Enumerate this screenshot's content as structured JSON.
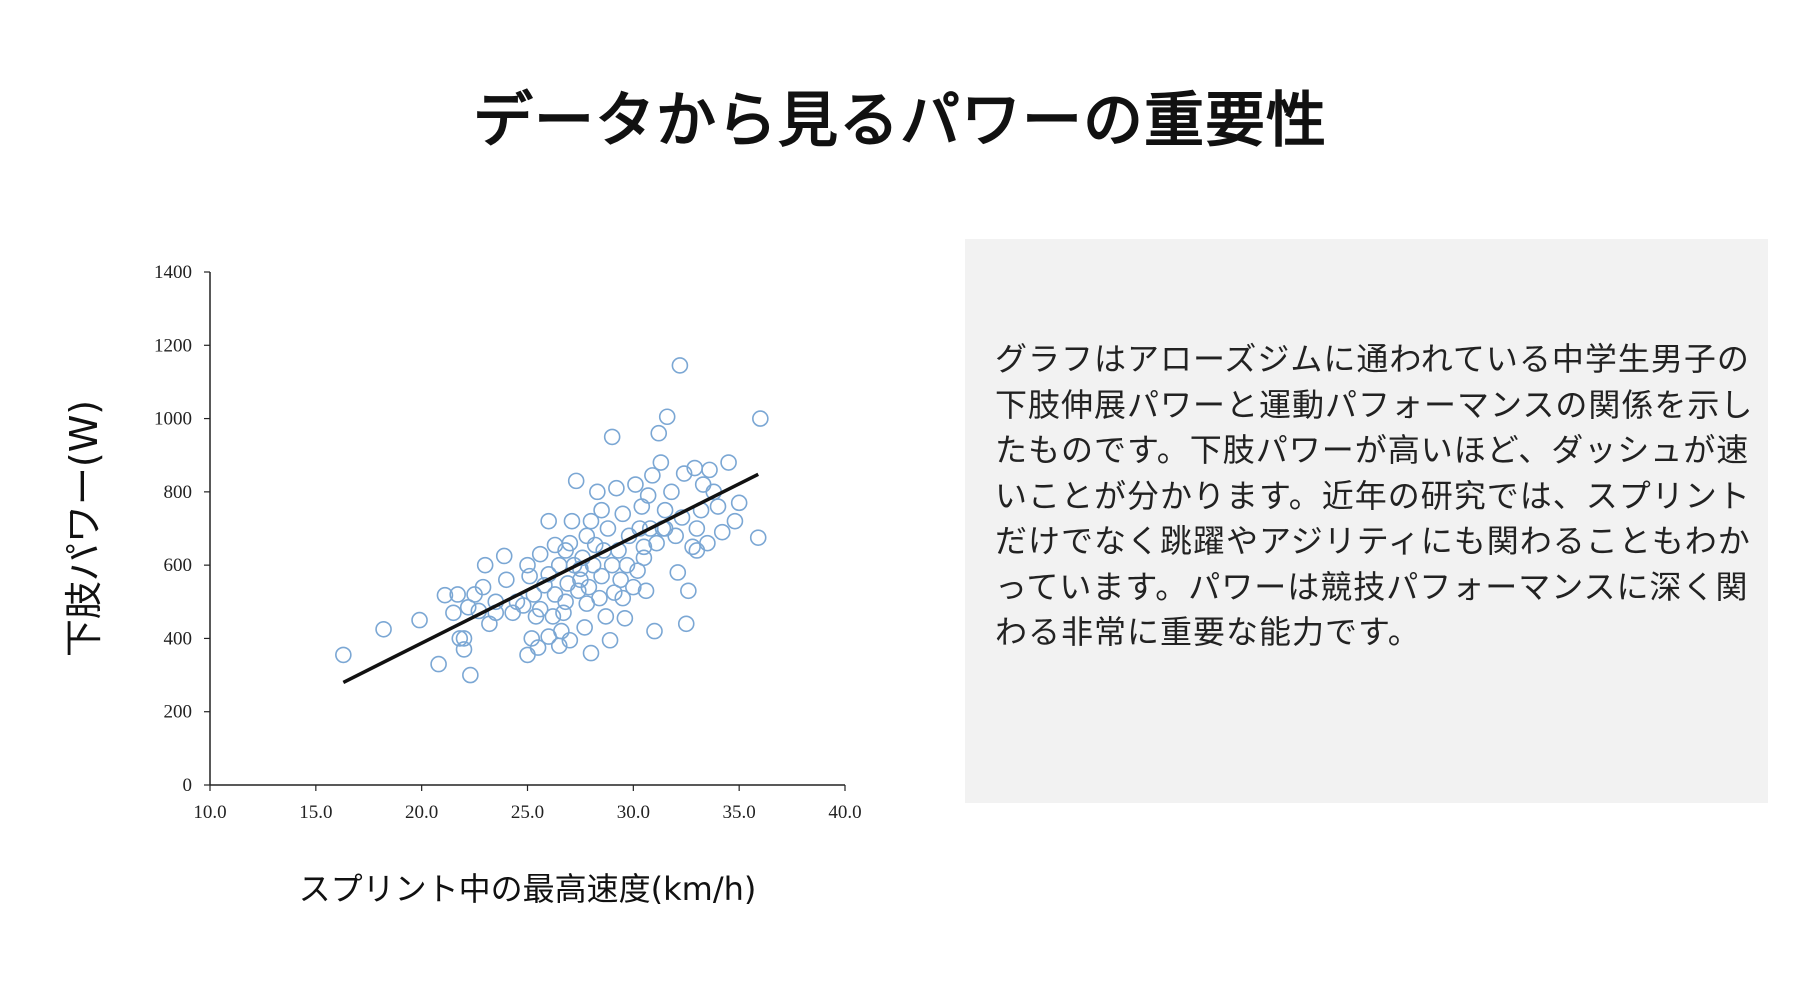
{
  "slide": {
    "title": "データから見るパワーの重要性",
    "description": "グラフはアローズジムに通われている中学生男子の下肢伸展パワーと運動パフォーマンスの関係を示したものです。下肢パワーが高いほど、ダッシュが速いことが分かります。近年の研究では、スプリントだけでなく跳躍やアジリティにも関わることもわかっています。パワーは競技パフォーマンスに深く関わる非常に重要な能力です。"
  },
  "colors": {
    "point_stroke": "#7ba7d4",
    "trend_line": "#111111",
    "panel_bg": "#f2f2f2",
    "axis": "#222222"
  },
  "chart_data": {
    "type": "scatter",
    "xlabel": "スプリント中の最高速度(km/h)",
    "ylabel": "下肢パワー(W)",
    "xlim": [
      10,
      40
    ],
    "ylim": [
      0,
      1400
    ],
    "x_ticks": [
      "10.0",
      "15.0",
      "20.0",
      "25.0",
      "30.0",
      "35.0",
      "40.0"
    ],
    "y_ticks": [
      "0",
      "200",
      "400",
      "600",
      "800",
      "1000",
      "1200",
      "1400"
    ],
    "grid": false,
    "trendline": {
      "x": [
        16.3,
        35.9
      ],
      "y": [
        280,
        848
      ]
    },
    "points": [
      [
        16.3,
        355
      ],
      [
        18.2,
        425
      ],
      [
        19.9,
        450
      ],
      [
        20.8,
        330
      ],
      [
        21.1,
        518
      ],
      [
        21.5,
        470
      ],
      [
        21.7,
        520
      ],
      [
        21.8,
        400
      ],
      [
        22.0,
        370
      ],
      [
        22.2,
        485
      ],
      [
        22.3,
        300
      ],
      [
        22.5,
        520
      ],
      [
        22.7,
        475
      ],
      [
        22.9,
        540
      ],
      [
        23.0,
        600
      ],
      [
        23.2,
        440
      ],
      [
        23.5,
        470
      ],
      [
        23.9,
        625
      ],
      [
        24.3,
        470
      ],
      [
        24.5,
        500
      ],
      [
        24.8,
        490
      ],
      [
        25.0,
        355
      ],
      [
        25.1,
        570
      ],
      [
        25.2,
        400
      ],
      [
        25.3,
        520
      ],
      [
        25.4,
        460
      ],
      [
        25.5,
        375
      ],
      [
        25.6,
        480
      ],
      [
        25.8,
        545
      ],
      [
        26.0,
        405
      ],
      [
        26.0,
        575
      ],
      [
        26.2,
        460
      ],
      [
        26.3,
        520
      ],
      [
        26.5,
        380
      ],
      [
        26.6,
        420
      ],
      [
        26.7,
        470
      ],
      [
        26.8,
        500
      ],
      [
        26.9,
        550
      ],
      [
        27.0,
        395
      ],
      [
        25.6,
        630
      ],
      [
        26.3,
        655
      ],
      [
        26.8,
        640
      ],
      [
        27.0,
        660
      ],
      [
        27.1,
        720
      ],
      [
        27.2,
        600
      ],
      [
        27.3,
        830
      ],
      [
        27.4,
        530
      ],
      [
        27.5,
        560
      ],
      [
        27.6,
        620
      ],
      [
        27.7,
        430
      ],
      [
        27.8,
        495
      ],
      [
        27.9,
        540
      ],
      [
        28.0,
        360
      ],
      [
        28.1,
        600
      ],
      [
        28.2,
        655
      ],
      [
        28.3,
        800
      ],
      [
        28.4,
        510
      ],
      [
        28.5,
        570
      ],
      [
        28.6,
        640
      ],
      [
        28.7,
        460
      ],
      [
        28.8,
        700
      ],
      [
        28.9,
        395
      ],
      [
        29.0,
        950
      ],
      [
        29.1,
        525
      ],
      [
        29.2,
        810
      ],
      [
        29.3,
        640
      ],
      [
        29.4,
        560
      ],
      [
        29.5,
        740
      ],
      [
        29.6,
        455
      ],
      [
        29.7,
        600
      ],
      [
        29.8,
        680
      ],
      [
        30.0,
        540
      ],
      [
        30.1,
        820
      ],
      [
        30.2,
        585
      ],
      [
        30.3,
        700
      ],
      [
        30.4,
        760
      ],
      [
        30.5,
        620
      ],
      [
        30.6,
        530
      ],
      [
        30.7,
        790
      ],
      [
        30.8,
        700
      ],
      [
        30.9,
        845
      ],
      [
        31.0,
        420
      ],
      [
        31.1,
        660
      ],
      [
        31.2,
        960
      ],
      [
        31.3,
        880
      ],
      [
        31.4,
        700
      ],
      [
        31.5,
        750
      ],
      [
        31.6,
        1005
      ],
      [
        31.8,
        800
      ],
      [
        32.0,
        680
      ],
      [
        32.1,
        580
      ],
      [
        32.2,
        1145
      ],
      [
        32.3,
        730
      ],
      [
        32.4,
        850
      ],
      [
        32.5,
        440
      ],
      [
        32.6,
        530
      ],
      [
        32.8,
        650
      ],
      [
        32.9,
        865
      ],
      [
        33.0,
        700
      ],
      [
        33.2,
        750
      ],
      [
        33.3,
        820
      ],
      [
        33.5,
        660
      ],
      [
        33.6,
        860
      ],
      [
        33.8,
        800
      ],
      [
        34.0,
        760
      ],
      [
        34.2,
        690
      ],
      [
        34.5,
        880
      ],
      [
        34.8,
        720
      ],
      [
        35.0,
        770
      ],
      [
        35.9,
        675
      ],
      [
        36.0,
        1000
      ],
      [
        26.0,
        720
      ],
      [
        27.5,
        590
      ],
      [
        28.0,
        720
      ],
      [
        29.0,
        600
      ],
      [
        30.5,
        650
      ],
      [
        24.0,
        560
      ],
      [
        25.0,
        600
      ],
      [
        26.5,
        600
      ],
      [
        27.8,
        680
      ],
      [
        29.5,
        510
      ],
      [
        31.5,
        700
      ],
      [
        33.0,
        640
      ],
      [
        22.0,
        400
      ],
      [
        23.5,
        500
      ],
      [
        28.5,
        750
      ]
    ]
  }
}
